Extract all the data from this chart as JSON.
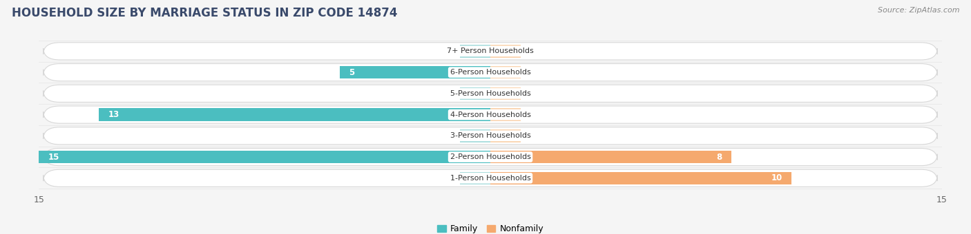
{
  "title": "HOUSEHOLD SIZE BY MARRIAGE STATUS IN ZIP CODE 14874",
  "source": "Source: ZipAtlas.com",
  "categories": [
    "7+ Person Households",
    "6-Person Households",
    "5-Person Households",
    "4-Person Households",
    "3-Person Households",
    "2-Person Households",
    "1-Person Households"
  ],
  "family_values": [
    0,
    5,
    0,
    13,
    0,
    15,
    0
  ],
  "nonfamily_values": [
    0,
    0,
    0,
    0,
    0,
    8,
    10
  ],
  "family_color": "#4BBEC0",
  "nonfamily_color": "#F5A96E",
  "family_color_light": "#A8DCDC",
  "nonfamily_color_light": "#FAD4B0",
  "bar_height": 0.6,
  "xlim_left": -15,
  "xlim_right": 15,
  "background_color": "#ffffff",
  "fig_bg_color": "#f5f5f5",
  "row_bg_color": "#f0f0f0",
  "row_outline_color": "#d8d8d8",
  "title_fontsize": 12,
  "source_fontsize": 8,
  "axis_fontsize": 9,
  "label_fontsize": 8,
  "value_fontsize": 8.5
}
